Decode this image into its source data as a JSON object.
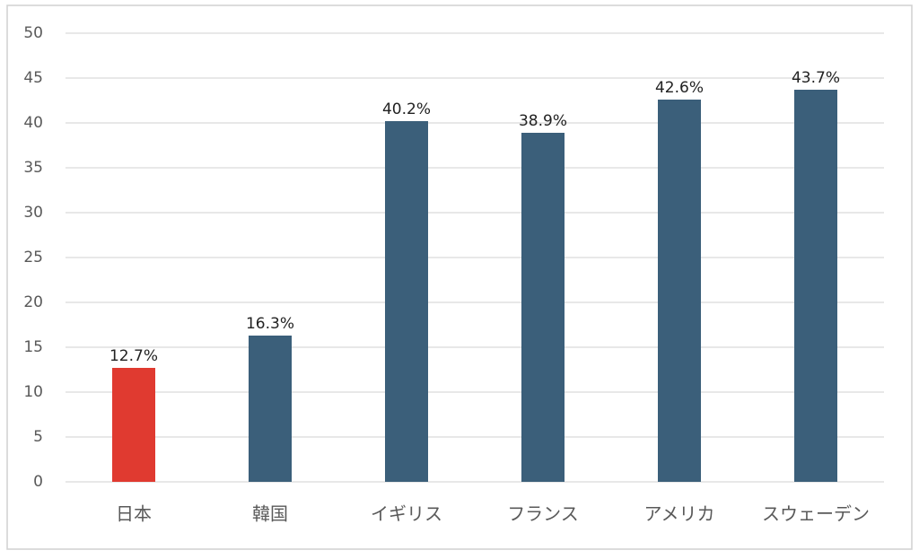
{
  "chart_data": {
    "type": "bar",
    "categories": [
      "日本",
      "韓国",
      "イギリス",
      "フランス",
      "アメリカ",
      "スウェーデン"
    ],
    "values": [
      12.7,
      16.3,
      40.2,
      38.9,
      42.6,
      43.7
    ],
    "value_labels": [
      "12.7%",
      "16.3%",
      "40.2%",
      "38.9%",
      "42.6%",
      "43.7%"
    ],
    "colors": [
      "#e03a30",
      "#3b5f7a",
      "#3b5f7a",
      "#3b5f7a",
      "#3b5f7a",
      "#3b5f7a"
    ],
    "ylim": [
      0,
      50
    ],
    "yticks": [
      0,
      5,
      10,
      15,
      20,
      25,
      30,
      35,
      40,
      45,
      50
    ],
    "grid": true
  }
}
